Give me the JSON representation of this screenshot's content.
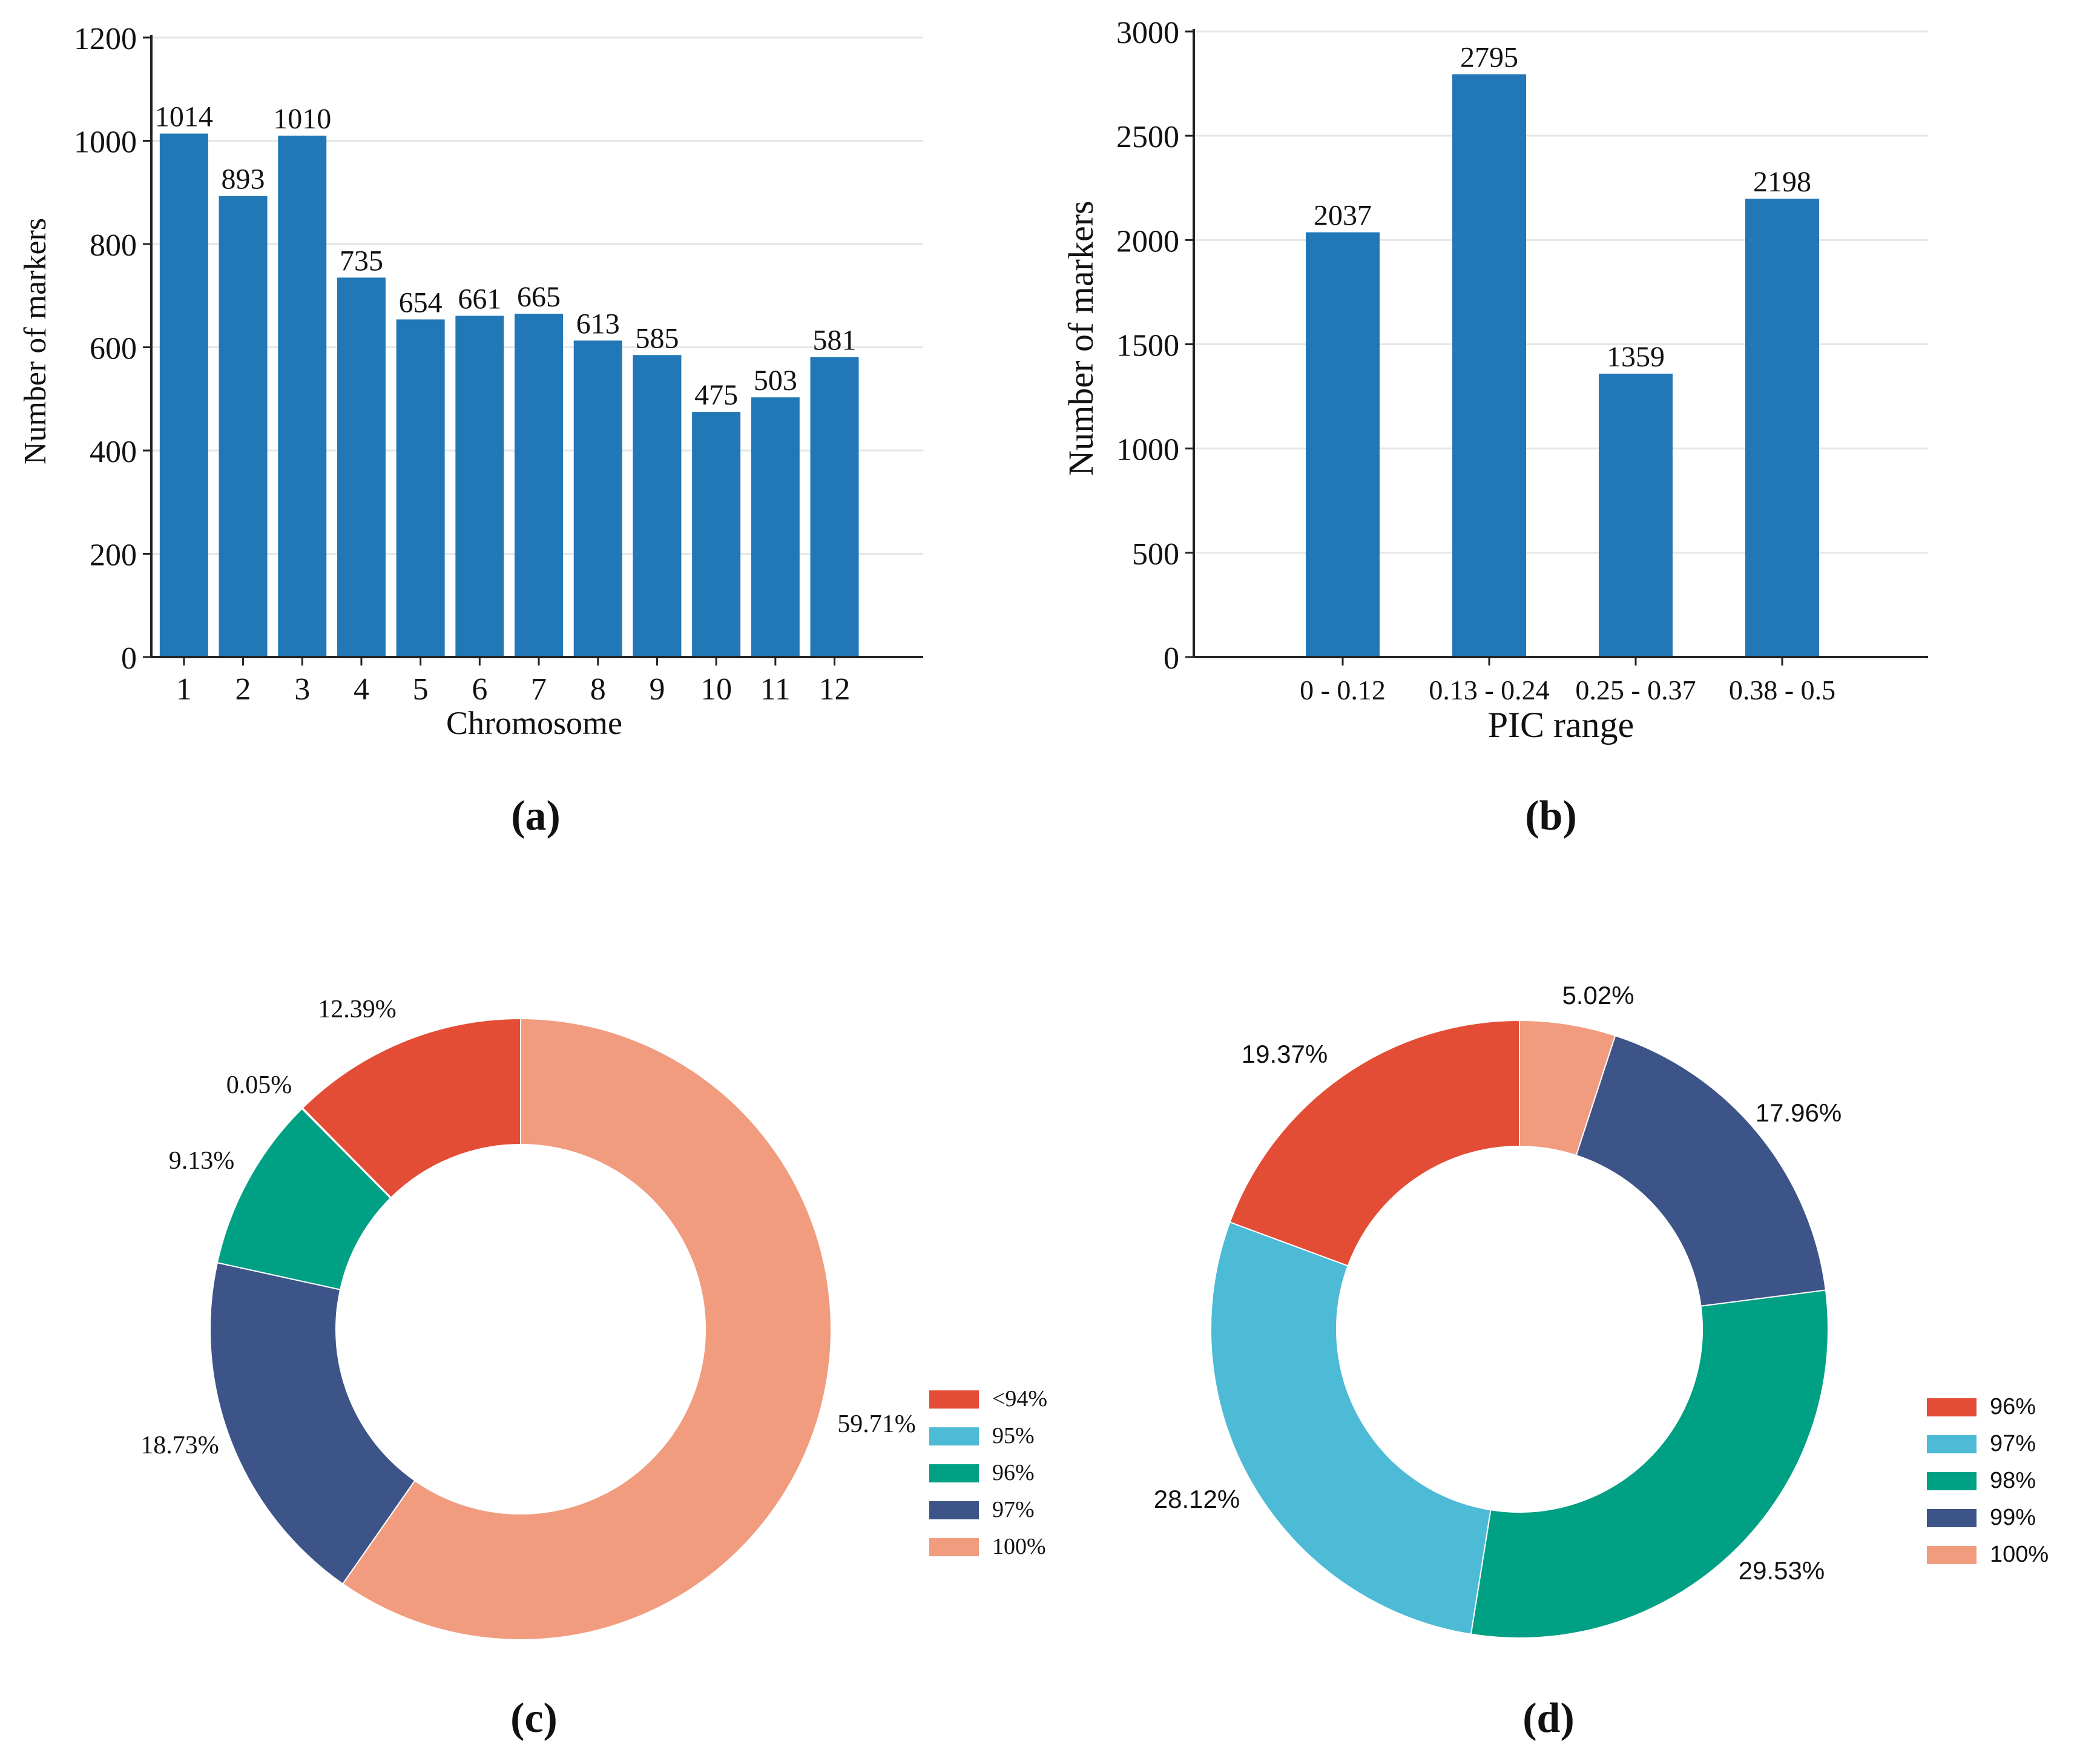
{
  "colors": {
    "bar": "#2278b6",
    "axis": "#222222",
    "grid": "#e6e6e6",
    "text": "#111111"
  },
  "chart_data": [
    {
      "id": "a",
      "type": "bar",
      "panel_label": "(a)",
      "title": "",
      "xlabel": "Chromosome",
      "ylabel": "Number of markers",
      "categories": [
        "1",
        "2",
        "3",
        "4",
        "5",
        "6",
        "7",
        "8",
        "9",
        "10",
        "11",
        "12"
      ],
      "values": [
        1014,
        893,
        1010,
        735,
        654,
        661,
        665,
        613,
        585,
        475,
        503,
        581
      ],
      "ylim": [
        0,
        1200
      ],
      "yticks": [
        0,
        200,
        400,
        600,
        800,
        1000,
        1200
      ],
      "grid": true
    },
    {
      "id": "b",
      "type": "bar",
      "panel_label": "(b)",
      "title": "",
      "xlabel": "PIC range",
      "ylabel": "Number of markers",
      "categories": [
        "0 - 0.12",
        "0.13 - 0.24",
        "0.25 - 0.37",
        "0.38 - 0.5"
      ],
      "values": [
        2037,
        2795,
        1359,
        2198
      ],
      "ylim": [
        0,
        3000
      ],
      "yticks": [
        0,
        500,
        1000,
        1500,
        2000,
        2500,
        3000
      ],
      "grid": true
    },
    {
      "id": "c",
      "type": "pie",
      "panel_label": "(c)",
      "donut": true,
      "legend_position": "right",
      "slices": [
        {
          "label": "<94%",
          "value": 12.39,
          "display": "12.39%",
          "color": "#e44d35"
        },
        {
          "label": "95%",
          "value": 0.05,
          "display": "0.05%",
          "color": "#4dbad6"
        },
        {
          "label": "96%",
          "value": 9.13,
          "display": "9.13%",
          "color": "#00a084"
        },
        {
          "label": "97%",
          "value": 18.73,
          "display": "18.73%",
          "color": "#3c5488"
        },
        {
          "label": "100%",
          "value": 59.71,
          "display": "59.71%",
          "color": "#f19c7f"
        }
      ]
    },
    {
      "id": "d",
      "type": "pie",
      "panel_label": "(d)",
      "donut": true,
      "legend_position": "right",
      "slices": [
        {
          "label": "96%",
          "value": 19.37,
          "display": "19.37%",
          "color": "#e44d35"
        },
        {
          "label": "97%",
          "value": 28.12,
          "display": "28.12%",
          "color": "#4dbad6"
        },
        {
          "label": "98%",
          "value": 29.53,
          "display": "29.53%",
          "color": "#00a084"
        },
        {
          "label": "99%",
          "value": 17.96,
          "display": "17.96%",
          "color": "#3c5488"
        },
        {
          "label": "100%",
          "value": 5.02,
          "display": "5.02%",
          "color": "#f19c7f"
        }
      ]
    }
  ]
}
